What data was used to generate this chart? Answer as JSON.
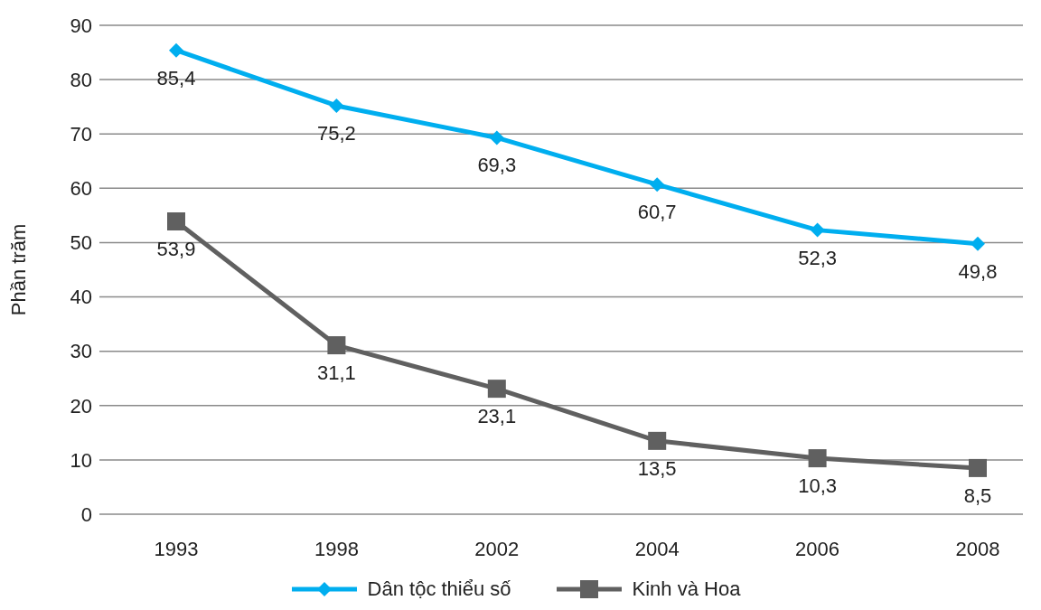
{
  "chart_data": {
    "type": "line",
    "ylabel": "Phần trăm",
    "categories": [
      "1993",
      "1998",
      "2002",
      "2004",
      "2006",
      "2008"
    ],
    "ylim": [
      0,
      90
    ],
    "yticks": [
      0,
      10,
      20,
      30,
      40,
      50,
      60,
      70,
      80,
      90
    ],
    "grid": "y",
    "legend": "bottom",
    "series": [
      {
        "name": "Dân tộc thiểu số",
        "color": "#00aeef",
        "marker": "diamond",
        "values": [
          85.4,
          75.2,
          69.3,
          60.7,
          52.3,
          49.8
        ],
        "value_labels": [
          "85,4",
          "75,2",
          "69,3",
          "60,7",
          "52,3",
          "49,8"
        ]
      },
      {
        "name": "Kinh và Hoa",
        "color": "#606060",
        "marker": "square",
        "values": [
          53.9,
          31.1,
          23.1,
          13.5,
          10.3,
          8.5
        ],
        "value_labels": [
          "53,9",
          "31,1",
          "23,1",
          "13,5",
          "10,3",
          "8,5"
        ]
      }
    ]
  }
}
